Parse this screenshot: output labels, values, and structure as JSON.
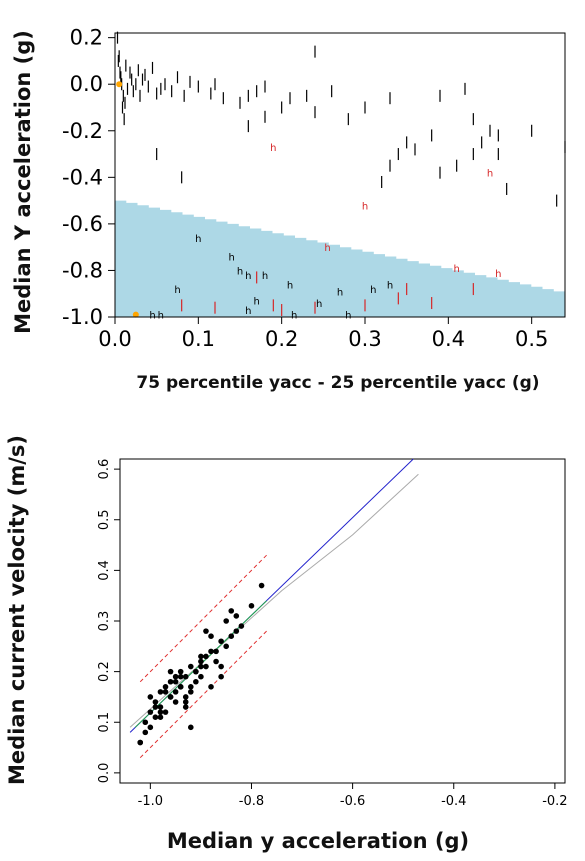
{
  "chart_data": [
    {
      "type": "scatter",
      "xlabel": "75 percentile yacc - 25 percentile yacc (g)",
      "ylabel": "Median Y acceleration (g)",
      "xlim": [
        0.0,
        0.54
      ],
      "ylim": [
        -1.0,
        0.22
      ],
      "x_ticks": [
        "0.0",
        "0.1",
        "0.2",
        "0.3",
        "0.4",
        "0.5"
      ],
      "y_ticks": [
        "0.2",
        "0.0",
        "-0.2",
        "-0.4",
        "-0.6",
        "-0.8",
        "-1.0"
      ],
      "shaded_region": {
        "color": "#add8e6",
        "boundary": [
          [
            0.0,
            -0.5
          ],
          [
            0.54,
            -0.9
          ]
        ]
      },
      "colors": {
        "black_mark": "#000000",
        "red_mark": "#d62728",
        "orange_mark": "#ffa500"
      },
      "series": [
        {
          "marker": "|",
          "color": "#000000",
          "x": [
            0.003,
            0.005,
            0.006,
            0.008,
            0.01,
            0.012,
            0.004,
            0.007,
            0.009,
            0.011,
            0.013,
            0.015,
            0.018,
            0.02,
            0.022,
            0.025,
            0.028,
            0.03,
            0.033,
            0.036,
            0.04,
            0.045,
            0.05,
            0.055,
            0.06,
            0.068,
            0.075,
            0.083,
            0.09,
            0.1,
            0.115,
            0.12,
            0.13,
            0.15,
            0.16,
            0.17,
            0.18,
            0.2,
            0.21,
            0.23,
            0.24,
            0.26,
            0.28,
            0.3,
            0.33,
            0.34,
            0.35,
            0.36,
            0.38,
            0.39,
            0.41,
            0.42,
            0.43,
            0.44,
            0.45,
            0.46,
            0.47,
            0.5,
            0.53,
            0.54,
            0.05,
            0.08,
            0.16,
            0.24,
            0.33,
            0.39,
            0.43,
            0.46,
            0.18,
            0.32
          ],
          "y": [
            0.2,
            0.12,
            0.05,
            0.0,
            -0.05,
            -0.08,
            0.1,
            0.03,
            -0.1,
            -0.15,
            0.08,
            -0.02,
            0.05,
            0.02,
            -0.03,
            0.0,
            0.06,
            -0.05,
            0.02,
            0.04,
            -0.01,
            0.07,
            -0.04,
            -0.02,
            0.0,
            -0.03,
            0.03,
            -0.05,
            0.01,
            -0.01,
            -0.04,
            0.0,
            -0.06,
            -0.08,
            -0.05,
            -0.03,
            -0.01,
            -0.1,
            -0.06,
            -0.05,
            0.14,
            -0.03,
            -0.15,
            -0.1,
            -0.35,
            -0.3,
            -0.25,
            -0.28,
            -0.22,
            -0.05,
            -0.35,
            -0.02,
            -0.15,
            -0.25,
            -0.2,
            -0.3,
            -0.45,
            -0.2,
            -0.5,
            -0.27,
            -0.3,
            -0.4,
            -0.18,
            -0.12,
            -0.06,
            -0.38,
            -0.3,
            -0.22,
            -0.14,
            -0.42
          ]
        },
        {
          "marker": "h",
          "color": "#000000",
          "x": [
            0.1,
            0.14,
            0.15,
            0.16,
            0.18,
            0.075,
            0.21,
            0.245,
            0.27,
            0.31,
            0.33,
            0.17,
            0.16,
            0.045,
            0.055,
            0.215,
            0.28
          ],
          "y": [
            -0.66,
            -0.74,
            -0.8,
            -0.82,
            -0.82,
            -0.88,
            -0.86,
            -0.94,
            -0.89,
            -0.88,
            -0.86,
            -0.93,
            -0.97,
            -0.99,
            -0.99,
            -0.99,
            -0.99
          ]
        },
        {
          "marker": "h",
          "color": "#d62728",
          "x": [
            0.19,
            0.3,
            0.45,
            0.41,
            0.46,
            0.255
          ],
          "y": [
            -0.27,
            -0.52,
            -0.38,
            -0.79,
            -0.81,
            -0.7
          ]
        },
        {
          "marker": "|",
          "color": "#d62728",
          "x": [
            0.12,
            0.17,
            0.19,
            0.2,
            0.24,
            0.3,
            0.34,
            0.35,
            0.38,
            0.43,
            0.08
          ],
          "y": [
            -0.96,
            -0.83,
            -0.95,
            -0.97,
            -0.96,
            -0.95,
            -0.92,
            -0.88,
            -0.94,
            -0.88,
            -0.95
          ]
        },
        {
          "marker": "dot",
          "color": "#ffa500",
          "x": [
            0.025,
            0.005
          ],
          "y": [
            -0.99,
            0.0
          ]
        }
      ]
    },
    {
      "type": "scatter",
      "xlabel": "Median y acceleration (g)",
      "ylabel": "Median current velocity (m/s)",
      "xlim": [
        -1.06,
        -0.18
      ],
      "ylim": [
        -0.02,
        0.62
      ],
      "x_ticks": [
        "-1.0",
        "-0.8",
        "-0.6",
        "-0.4",
        "-0.2"
      ],
      "y_ticks": [
        "0.0",
        "0.1",
        "0.2",
        "0.3",
        "0.4",
        "0.5",
        "0.6"
      ],
      "points": {
        "x": [
          -1.02,
          -1.01,
          -1.0,
          -1.0,
          -0.99,
          -0.99,
          -0.98,
          -0.98,
          -0.97,
          -0.97,
          -0.96,
          -0.96,
          -0.95,
          -0.95,
          -0.94,
          -0.94,
          -0.93,
          -0.93,
          -0.92,
          -0.92,
          -0.91,
          -0.91,
          -0.9,
          -0.9,
          -0.89,
          -0.89,
          -0.88,
          -0.87,
          -0.86,
          -0.85,
          -0.84,
          -0.83,
          -0.82,
          -0.8,
          -0.78,
          -1.01,
          -1.0,
          -0.99,
          -0.98,
          -0.97,
          -0.96,
          -0.95,
          -0.94,
          -0.93,
          -0.92,
          -0.91,
          -0.9,
          -0.89,
          -0.88,
          -0.87,
          -0.86,
          -0.85,
          -0.84,
          -1.02,
          -0.98,
          -0.96,
          -0.95,
          -0.93,
          -0.9,
          -0.88,
          -0.86,
          -0.83,
          -0.92,
          -0.94
        ],
        "y": [
          0.06,
          0.1,
          0.12,
          0.15,
          0.11,
          0.14,
          0.13,
          0.16,
          0.17,
          0.12,
          0.2,
          0.15,
          0.18,
          0.14,
          0.17,
          0.2,
          0.19,
          0.15,
          0.21,
          0.16,
          0.2,
          0.18,
          0.22,
          0.19,
          0.23,
          0.21,
          0.24,
          0.22,
          0.26,
          0.25,
          0.27,
          0.28,
          0.29,
          0.33,
          0.37,
          0.08,
          0.09,
          0.13,
          0.12,
          0.16,
          0.18,
          0.16,
          0.19,
          0.14,
          0.17,
          0.2,
          0.23,
          0.28,
          0.17,
          0.24,
          0.21,
          0.3,
          0.32,
          0.06,
          0.11,
          0.15,
          0.19,
          0.13,
          0.21,
          0.27,
          0.19,
          0.31,
          0.09,
          0.17
        ]
      },
      "fit_lines": [
        {
          "color": "#2222cc",
          "x": [
            -1.04,
            -0.48
          ],
          "y": [
            0.08,
            0.62
          ]
        },
        {
          "color": "#aaaaaa",
          "x": [
            -1.04,
            -0.74,
            -0.6,
            -0.47
          ],
          "y": [
            0.09,
            0.36,
            0.47,
            0.59
          ]
        },
        {
          "color": "#22aa44",
          "x": [
            -1.03,
            -0.77
          ],
          "y": [
            0.09,
            0.34
          ]
        }
      ],
      "interval_lines": [
        {
          "color": "#e03030",
          "x": [
            -1.02,
            -0.77
          ],
          "y": [
            0.18,
            0.43
          ]
        },
        {
          "color": "#e03030",
          "x": [
            -1.02,
            -0.77
          ],
          "y": [
            0.03,
            0.28
          ]
        }
      ]
    }
  ]
}
